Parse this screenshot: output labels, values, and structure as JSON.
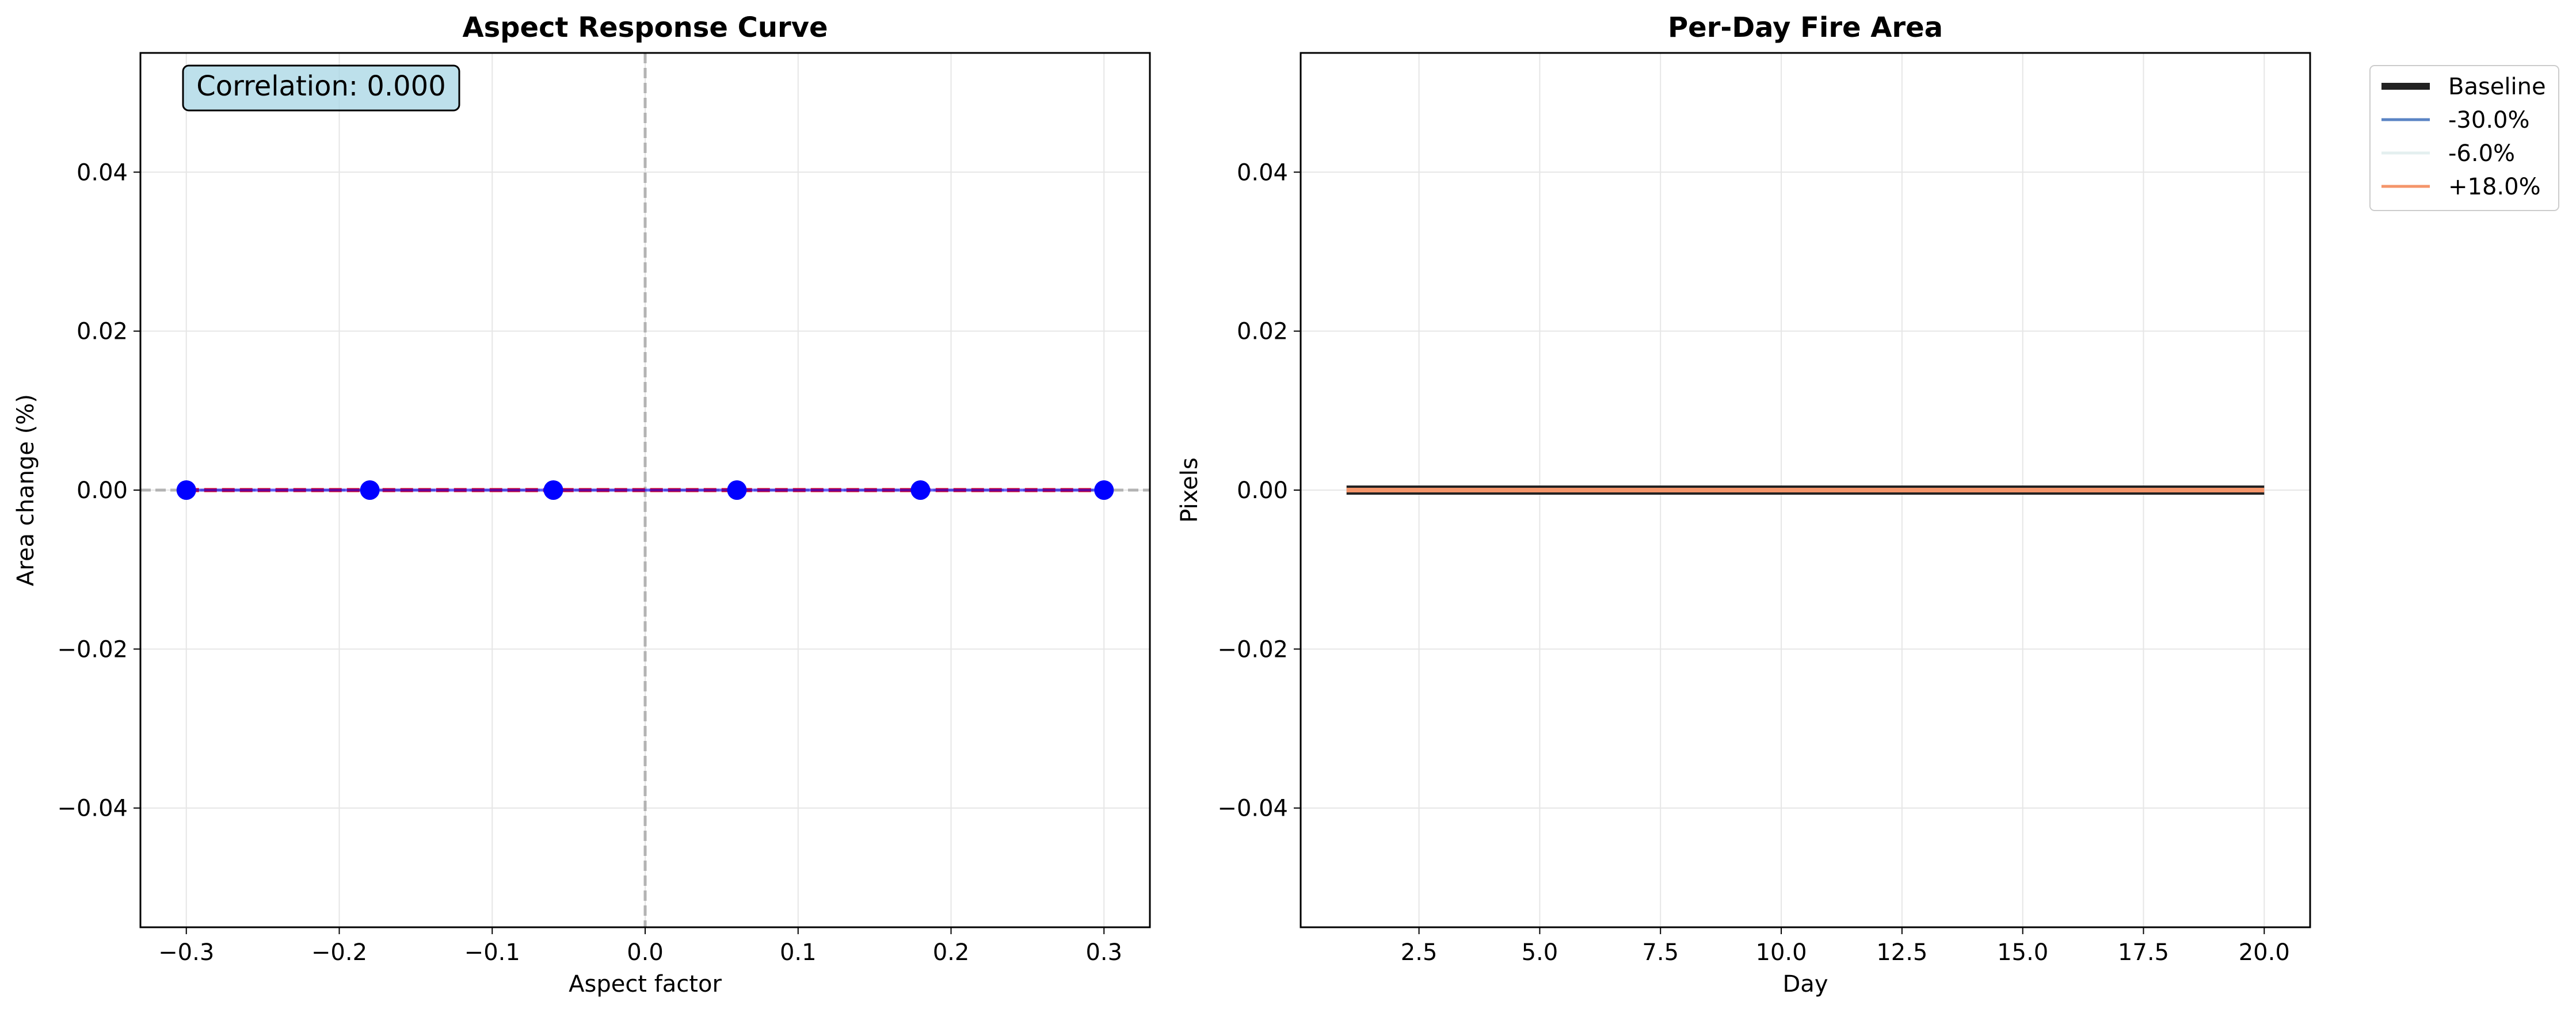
{
  "chart_data": [
    {
      "type": "scatter",
      "title": "Aspect Response Curve",
      "xlabel": "Aspect factor",
      "ylabel": "Area change (%)",
      "xlim": [
        -0.33,
        0.33
      ],
      "ylim": [
        -0.055,
        0.055
      ],
      "xticks": [
        -0.3,
        -0.2,
        -0.1,
        0.0,
        0.1,
        0.2,
        0.3
      ],
      "xtick_labels": [
        "−0.3",
        "−0.2",
        "−0.1",
        "0.0",
        "0.1",
        "0.2",
        "0.3"
      ],
      "yticks": [
        -0.04,
        -0.02,
        0.0,
        0.02,
        0.04
      ],
      "ytick_labels": [
        "−0.04",
        "−0.02",
        "0.00",
        "0.02",
        "0.04"
      ],
      "grid": true,
      "reference_lines": {
        "horizontal_y": 0.0,
        "vertical_x": 0.0
      },
      "annotation": "Correlation: 0.000",
      "series": [
        {
          "style": "markers",
          "color": "#0000ff",
          "x": [
            -0.3,
            -0.18,
            -0.06,
            0.06,
            0.18,
            0.3
          ],
          "y": [
            0.0,
            0.0,
            0.0,
            0.0,
            0.0,
            0.0
          ]
        },
        {
          "style": "line",
          "color": "#ff0000",
          "x": [
            -0.3,
            -0.18,
            -0.06,
            0.06,
            0.18,
            0.3
          ],
          "y": [
            0.0,
            0.0,
            0.0,
            0.0,
            0.0,
            0.0
          ]
        }
      ]
    },
    {
      "type": "line",
      "title": "Per-Day Fire Area",
      "xlabel": "Day",
      "ylabel": "Pixels",
      "xlim": [
        0.05,
        20.95
      ],
      "ylim": [
        -0.055,
        0.055
      ],
      "xticks": [
        2.5,
        5.0,
        7.5,
        10.0,
        12.5,
        15.0,
        17.5,
        20.0
      ],
      "xtick_labels": [
        "2.5",
        "5.0",
        "7.5",
        "10.0",
        "12.5",
        "15.0",
        "17.5",
        "20.0"
      ],
      "yticks": [
        -0.04,
        -0.02,
        0.0,
        0.02,
        0.04
      ],
      "ytick_labels": [
        "−0.04",
        "−0.02",
        "0.00",
        "0.02",
        "0.04"
      ],
      "grid": true,
      "legend_position": "outside top-right",
      "x": [
        1,
        2,
        3,
        4,
        5,
        6,
        7,
        8,
        9,
        10,
        11,
        12,
        13,
        14,
        15,
        16,
        17,
        18,
        19,
        20
      ],
      "series": [
        {
          "name": "Baseline",
          "color": "#222222",
          "values": [
            0,
            0,
            0,
            0,
            0,
            0,
            0,
            0,
            0,
            0,
            0,
            0,
            0,
            0,
            0,
            0,
            0,
            0,
            0,
            0
          ]
        },
        {
          "name": "-30.0%",
          "color": "#5b84c4",
          "values": [
            0,
            0,
            0,
            0,
            0,
            0,
            0,
            0,
            0,
            0,
            0,
            0,
            0,
            0,
            0,
            0,
            0,
            0,
            0,
            0
          ]
        },
        {
          "name": "-6.0%",
          "color": "#e4efef",
          "values": [
            0,
            0,
            0,
            0,
            0,
            0,
            0,
            0,
            0,
            0,
            0,
            0,
            0,
            0,
            0,
            0,
            0,
            0,
            0,
            0
          ]
        },
        {
          "name": "+18.0%",
          "color": "#f4956a",
          "values": [
            0,
            0,
            0,
            0,
            0,
            0,
            0,
            0,
            0,
            0,
            0,
            0,
            0,
            0,
            0,
            0,
            0,
            0,
            0,
            0
          ]
        }
      ]
    }
  ]
}
